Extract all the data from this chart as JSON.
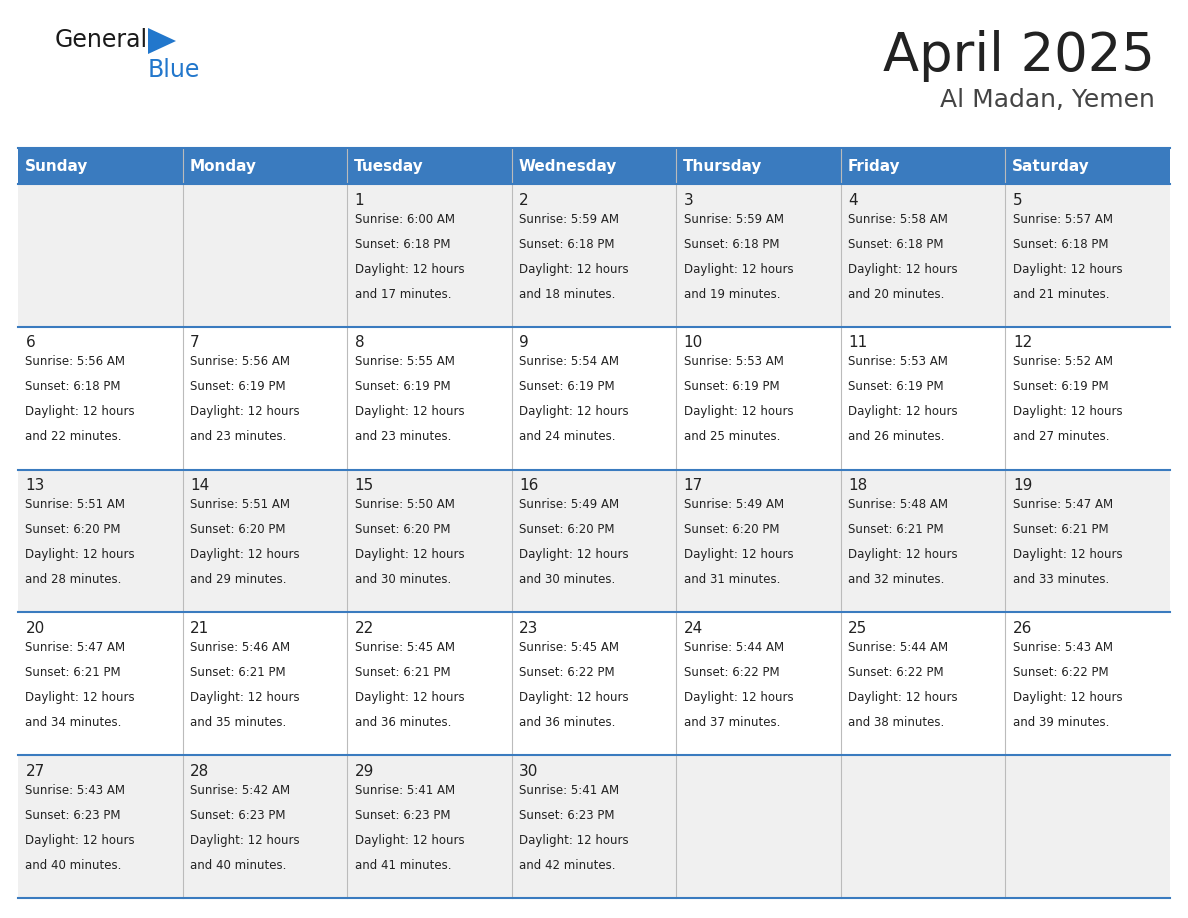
{
  "title": "April 2025",
  "subtitle": "Al Madan, Yemen",
  "header_color": "#3a7bbf",
  "header_text_color": "#ffffff",
  "row_bg_colors": [
    "#f0f0f0",
    "#ffffff",
    "#f0f0f0",
    "#ffffff",
    "#f0f0f0"
  ],
  "border_color": "#3a7bbf",
  "day_headers": [
    "Sunday",
    "Monday",
    "Tuesday",
    "Wednesday",
    "Thursday",
    "Friday",
    "Saturday"
  ],
  "title_color": "#222222",
  "subtitle_color": "#444444",
  "logo_blue_color": "#2277cc",
  "text_color": "#222222",
  "days": [
    {
      "day": 1,
      "col": 2,
      "row": 0,
      "sunrise": "6:00 AM",
      "sunset": "6:18 PM",
      "daylight": "12 hours and 17 minutes."
    },
    {
      "day": 2,
      "col": 3,
      "row": 0,
      "sunrise": "5:59 AM",
      "sunset": "6:18 PM",
      "daylight": "12 hours and 18 minutes."
    },
    {
      "day": 3,
      "col": 4,
      "row": 0,
      "sunrise": "5:59 AM",
      "sunset": "6:18 PM",
      "daylight": "12 hours and 19 minutes."
    },
    {
      "day": 4,
      "col": 5,
      "row": 0,
      "sunrise": "5:58 AM",
      "sunset": "6:18 PM",
      "daylight": "12 hours and 20 minutes."
    },
    {
      "day": 5,
      "col": 6,
      "row": 0,
      "sunrise": "5:57 AM",
      "sunset": "6:18 PM",
      "daylight": "12 hours and 21 minutes."
    },
    {
      "day": 6,
      "col": 0,
      "row": 1,
      "sunrise": "5:56 AM",
      "sunset": "6:18 PM",
      "daylight": "12 hours and 22 minutes."
    },
    {
      "day": 7,
      "col": 1,
      "row": 1,
      "sunrise": "5:56 AM",
      "sunset": "6:19 PM",
      "daylight": "12 hours and 23 minutes."
    },
    {
      "day": 8,
      "col": 2,
      "row": 1,
      "sunrise": "5:55 AM",
      "sunset": "6:19 PM",
      "daylight": "12 hours and 23 minutes."
    },
    {
      "day": 9,
      "col": 3,
      "row": 1,
      "sunrise": "5:54 AM",
      "sunset": "6:19 PM",
      "daylight": "12 hours and 24 minutes."
    },
    {
      "day": 10,
      "col": 4,
      "row": 1,
      "sunrise": "5:53 AM",
      "sunset": "6:19 PM",
      "daylight": "12 hours and 25 minutes."
    },
    {
      "day": 11,
      "col": 5,
      "row": 1,
      "sunrise": "5:53 AM",
      "sunset": "6:19 PM",
      "daylight": "12 hours and 26 minutes."
    },
    {
      "day": 12,
      "col": 6,
      "row": 1,
      "sunrise": "5:52 AM",
      "sunset": "6:19 PM",
      "daylight": "12 hours and 27 minutes."
    },
    {
      "day": 13,
      "col": 0,
      "row": 2,
      "sunrise": "5:51 AM",
      "sunset": "6:20 PM",
      "daylight": "12 hours and 28 minutes."
    },
    {
      "day": 14,
      "col": 1,
      "row": 2,
      "sunrise": "5:51 AM",
      "sunset": "6:20 PM",
      "daylight": "12 hours and 29 minutes."
    },
    {
      "day": 15,
      "col": 2,
      "row": 2,
      "sunrise": "5:50 AM",
      "sunset": "6:20 PM",
      "daylight": "12 hours and 30 minutes."
    },
    {
      "day": 16,
      "col": 3,
      "row": 2,
      "sunrise": "5:49 AM",
      "sunset": "6:20 PM",
      "daylight": "12 hours and 30 minutes."
    },
    {
      "day": 17,
      "col": 4,
      "row": 2,
      "sunrise": "5:49 AM",
      "sunset": "6:20 PM",
      "daylight": "12 hours and 31 minutes."
    },
    {
      "day": 18,
      "col": 5,
      "row": 2,
      "sunrise": "5:48 AM",
      "sunset": "6:21 PM",
      "daylight": "12 hours and 32 minutes."
    },
    {
      "day": 19,
      "col": 6,
      "row": 2,
      "sunrise": "5:47 AM",
      "sunset": "6:21 PM",
      "daylight": "12 hours and 33 minutes."
    },
    {
      "day": 20,
      "col": 0,
      "row": 3,
      "sunrise": "5:47 AM",
      "sunset": "6:21 PM",
      "daylight": "12 hours and 34 minutes."
    },
    {
      "day": 21,
      "col": 1,
      "row": 3,
      "sunrise": "5:46 AM",
      "sunset": "6:21 PM",
      "daylight": "12 hours and 35 minutes."
    },
    {
      "day": 22,
      "col": 2,
      "row": 3,
      "sunrise": "5:45 AM",
      "sunset": "6:21 PM",
      "daylight": "12 hours and 36 minutes."
    },
    {
      "day": 23,
      "col": 3,
      "row": 3,
      "sunrise": "5:45 AM",
      "sunset": "6:22 PM",
      "daylight": "12 hours and 36 minutes."
    },
    {
      "day": 24,
      "col": 4,
      "row": 3,
      "sunrise": "5:44 AM",
      "sunset": "6:22 PM",
      "daylight": "12 hours and 37 minutes."
    },
    {
      "day": 25,
      "col": 5,
      "row": 3,
      "sunrise": "5:44 AM",
      "sunset": "6:22 PM",
      "daylight": "12 hours and 38 minutes."
    },
    {
      "day": 26,
      "col": 6,
      "row": 3,
      "sunrise": "5:43 AM",
      "sunset": "6:22 PM",
      "daylight": "12 hours and 39 minutes."
    },
    {
      "day": 27,
      "col": 0,
      "row": 4,
      "sunrise": "5:43 AM",
      "sunset": "6:23 PM",
      "daylight": "12 hours and 40 minutes."
    },
    {
      "day": 28,
      "col": 1,
      "row": 4,
      "sunrise": "5:42 AM",
      "sunset": "6:23 PM",
      "daylight": "12 hours and 40 minutes."
    },
    {
      "day": 29,
      "col": 2,
      "row": 4,
      "sunrise": "5:41 AM",
      "sunset": "6:23 PM",
      "daylight": "12 hours and 41 minutes."
    },
    {
      "day": 30,
      "col": 3,
      "row": 4,
      "sunrise": "5:41 AM",
      "sunset": "6:23 PM",
      "daylight": "12 hours and 42 minutes."
    }
  ]
}
